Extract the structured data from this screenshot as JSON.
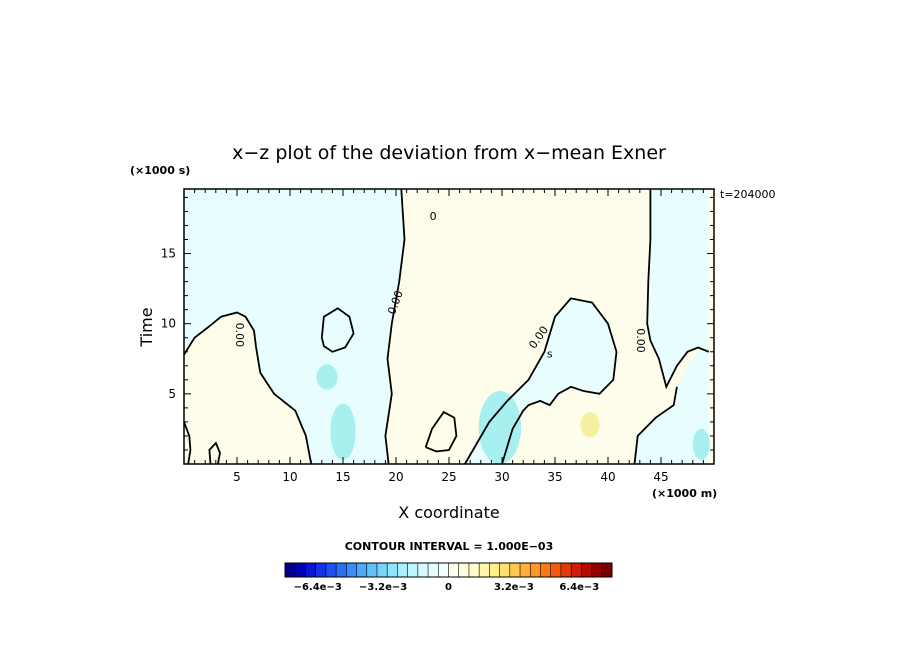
{
  "chart_data": {
    "type": "contour",
    "title": "x−z plot of the deviation from x−mean Exner",
    "xlabel": "X coordinate",
    "ylabel": "Time",
    "x_unit": "(×1000 m)",
    "y_unit": "(×1000 s)",
    "time_label": "t=204000",
    "xlim": [
      0,
      50
    ],
    "ylim": [
      0,
      19.6
    ],
    "x_ticks": [
      5,
      10,
      15,
      20,
      25,
      30,
      35,
      40,
      45
    ],
    "x_tick_labels": [
      "5",
      "10",
      "15",
      "20",
      "25",
      "30",
      "35",
      "40",
      "45"
    ],
    "y_ticks": [
      5,
      10,
      15
    ],
    "y_tick_labels": [
      "5",
      "10",
      "15"
    ],
    "contour_interval_text": "CONTOUR INTERVAL = 1.000E−03",
    "contour_labels": [
      {
        "text": "0.00",
        "x": 5.2,
        "y": 9.2,
        "rotation": 90
      },
      {
        "text": "0.00",
        "x": 20.0,
        "y": 11.5,
        "rotation": -70
      },
      {
        "text": "0",
        "x": 23.5,
        "y": 17.6,
        "rotation": 0
      },
      {
        "text": "0.00",
        "x": 33.5,
        "y": 9.0,
        "rotation": -55
      },
      {
        "text": "s",
        "x": 34.5,
        "y": 7.8,
        "rotation": 0
      },
      {
        "text": "0.00",
        "x": 43.0,
        "y": 8.8,
        "rotation": 90
      }
    ],
    "regions": [
      {
        "sign": "negative",
        "points": [
          [
            0,
            19.6
          ],
          [
            20.5,
            19.6
          ],
          [
            20.8,
            16
          ],
          [
            20.3,
            13
          ],
          [
            19.6,
            10
          ],
          [
            19.2,
            7.5
          ],
          [
            19.6,
            5
          ],
          [
            19.0,
            2
          ],
          [
            19.3,
            0
          ],
          [
            17,
            0
          ],
          [
            12,
            0
          ],
          [
            11.5,
            2
          ],
          [
            10.5,
            3.8
          ],
          [
            8.5,
            5
          ],
          [
            7.2,
            6.5
          ],
          [
            6.8,
            8.3
          ],
          [
            6.6,
            9.5
          ],
          [
            5.8,
            10.5
          ],
          [
            5,
            10.8
          ],
          [
            3.5,
            10.5
          ],
          [
            2.2,
            9.7
          ],
          [
            1,
            9
          ],
          [
            0,
            7.8
          ]
        ]
      },
      {
        "sign": "negative",
        "points": [
          [
            26.5,
            0
          ],
          [
            28.8,
            3
          ],
          [
            30.5,
            4.5
          ],
          [
            32.5,
            6
          ],
          [
            34,
            8
          ],
          [
            35,
            10.5
          ],
          [
            36.5,
            11.8
          ],
          [
            38.5,
            11.5
          ],
          [
            40,
            10
          ],
          [
            40.8,
            8
          ],
          [
            40.5,
            6
          ],
          [
            39.2,
            5
          ],
          [
            37.7,
            5.2
          ],
          [
            36.5,
            5.5
          ],
          [
            35.3,
            5
          ],
          [
            34.5,
            4.2
          ],
          [
            33.6,
            4.5
          ],
          [
            32.5,
            4.2
          ],
          [
            32,
            3.8
          ],
          [
            31,
            2.5
          ],
          [
            30,
            0
          ]
        ]
      },
      {
        "sign": "negative",
        "points": [
          [
            44,
            19.6
          ],
          [
            49.5,
            19.6
          ],
          [
            49.5,
            8
          ],
          [
            48.5,
            8.3
          ],
          [
            47.5,
            8
          ],
          [
            46.5,
            7
          ],
          [
            45.5,
            5.5
          ],
          [
            44.8,
            7.5
          ],
          [
            44,
            8.8
          ],
          [
            43.7,
            10
          ],
          [
            43.8,
            13
          ],
          [
            44,
            16
          ]
        ]
      },
      {
        "sign": "negative",
        "points": [
          [
            42.5,
            0
          ],
          [
            42.8,
            2
          ],
          [
            44.5,
            3.3
          ],
          [
            46.2,
            4.2
          ],
          [
            46.5,
            5.5
          ],
          [
            47.5,
            7
          ],
          [
            48.5,
            8
          ],
          [
            49.5,
            8
          ],
          [
            49.5,
            0
          ]
        ]
      }
    ],
    "contour_paths": [
      [
        [
          0,
          7.8
        ],
        [
          1,
          9
        ],
        [
          2.2,
          9.7
        ],
        [
          3.5,
          10.5
        ],
        [
          5,
          10.8
        ],
        [
          5.8,
          10.5
        ],
        [
          6.6,
          9.5
        ],
        [
          6.8,
          8.3
        ],
        [
          7.2,
          6.5
        ],
        [
          8.5,
          5
        ],
        [
          10.5,
          3.8
        ],
        [
          11.5,
          2
        ],
        [
          12,
          0
        ]
      ],
      [
        [
          20.5,
          19.6
        ],
        [
          20.8,
          16
        ],
        [
          20.3,
          13
        ],
        [
          19.6,
          10
        ],
        [
          19.2,
          7.5
        ],
        [
          19.6,
          5
        ],
        [
          19.0,
          2
        ],
        [
          19.3,
          0
        ]
      ],
      [
        [
          26.5,
          0
        ],
        [
          28.8,
          3
        ],
        [
          30.5,
          4.5
        ],
        [
          32.5,
          6
        ],
        [
          34,
          8
        ],
        [
          35,
          10.5
        ],
        [
          36.5,
          11.8
        ],
        [
          38.5,
          11.5
        ],
        [
          40,
          10
        ],
        [
          40.8,
          8
        ],
        [
          40.5,
          6
        ],
        [
          39.2,
          5
        ],
        [
          37.7,
          5.2
        ],
        [
          36.5,
          5.5
        ],
        [
          35.3,
          5
        ],
        [
          34.5,
          4.2
        ],
        [
          33.6,
          4.5
        ],
        [
          32.5,
          4.2
        ],
        [
          32,
          3.8
        ],
        [
          31,
          2.5
        ],
        [
          30,
          0
        ]
      ],
      [
        [
          44,
          19.6
        ],
        [
          44,
          16
        ],
        [
          43.8,
          13
        ],
        [
          43.7,
          10
        ],
        [
          44,
          8.8
        ],
        [
          44.8,
          7.5
        ],
        [
          45.5,
          5.5
        ],
        [
          46.5,
          7
        ],
        [
          47.5,
          8
        ],
        [
          48.5,
          8.3
        ],
        [
          49.5,
          8
        ]
      ],
      [
        [
          42.5,
          0
        ],
        [
          42.8,
          2
        ],
        [
          44.5,
          3.3
        ],
        [
          46.2,
          4.2
        ],
        [
          46.5,
          5.5
        ]
      ],
      [
        [
          0,
          3
        ],
        [
          0.5,
          2
        ],
        [
          0.6,
          1
        ],
        [
          0.4,
          0
        ]
      ],
      [
        [
          2.5,
          0
        ],
        [
          2.4,
          1
        ],
        [
          3,
          1.5
        ],
        [
          3.4,
          0.8
        ],
        [
          3.2,
          0
        ]
      ],
      [
        [
          13.0,
          9
        ],
        [
          13.2,
          10.5
        ],
        [
          14.5,
          11.1
        ],
        [
          15.6,
          10.5
        ],
        [
          16,
          9.3
        ],
        [
          15.2,
          8.3
        ],
        [
          14,
          8
        ],
        [
          13.2,
          8.4
        ],
        [
          13.0,
          9
        ]
      ],
      [
        [
          22.8,
          1.2
        ],
        [
          23.4,
          2.5
        ],
        [
          24.5,
          3.7
        ],
        [
          25.5,
          3.3
        ],
        [
          25.7,
          2
        ],
        [
          25,
          1
        ],
        [
          23.8,
          0.9
        ],
        [
          22.8,
          1.2
        ]
      ]
    ],
    "blobs": [
      {
        "x": 13.5,
        "y": 6.2,
        "rx": 1.0,
        "ry": 0.9,
        "color": "#a8f0f0"
      },
      {
        "x": 15.0,
        "y": 2.3,
        "rx": 1.2,
        "ry": 2.0,
        "color": "#a8f0f0"
      },
      {
        "x": 29.8,
        "y": 2.6,
        "rx": 2.0,
        "ry": 2.6,
        "color": "#a8f0f0"
      },
      {
        "x": 38.3,
        "y": 2.8,
        "rx": 0.9,
        "ry": 0.9,
        "color": "#f7f0a0"
      },
      {
        "x": 48.8,
        "y": 1.4,
        "rx": 0.8,
        "ry": 1.1,
        "color": "#a8f0f0"
      }
    ],
    "colorbar": {
      "colors": [
        "#00008c",
        "#0000b4",
        "#0a14d2",
        "#1432e6",
        "#1e50f0",
        "#2a6ef5",
        "#3c8cf8",
        "#4ea8fa",
        "#60c0fc",
        "#78d4fd",
        "#90e4fe",
        "#a8f0ff",
        "#bff7ff",
        "#d4fbff",
        "#e6feff",
        "#f4ffff",
        "#fffff4",
        "#ffffe0",
        "#fffcc8",
        "#fff7aa",
        "#fff08c",
        "#ffe070",
        "#ffc850",
        "#ffb03a",
        "#ff9628",
        "#ff7818",
        "#f55a10",
        "#e63c0a",
        "#d21e05",
        "#b40a00",
        "#960000",
        "#780000"
      ],
      "tick_labels": [
        "−6.4e−3",
        "−3.2e−3",
        "0",
        "3.2e−3",
        "6.4e−3"
      ],
      "tick_values": [
        -0.0064,
        -0.0032,
        0,
        0.0032,
        0.0064
      ],
      "range": [
        -0.008,
        0.008
      ]
    },
    "fill_colors": {
      "negative": "#e8fdfd",
      "positive": "#fefcea"
    },
    "legend": "none",
    "grid": false
  }
}
